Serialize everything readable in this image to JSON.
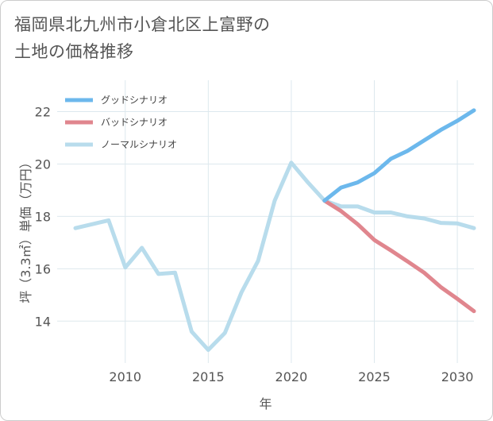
{
  "title_lines": [
    "福岡県北九州市小倉北区上富野の",
    "土地の価格推移"
  ],
  "chart_data": {
    "type": "line",
    "title": "福岡県北九州市小倉北区上富野の土地の価格推移",
    "xlabel": "年",
    "ylabel": "坪（3.3㎡）単価（万円）",
    "xlim": [
      2005.9,
      2031
    ],
    "ylim": [
      12.4,
      23.2
    ],
    "x_ticks": [
      2010,
      2015,
      2020,
      2025,
      2030
    ],
    "y_ticks": [
      14,
      16,
      18,
      20,
      22
    ],
    "x_tick_labels": [
      "2010",
      "2015",
      "2020",
      "2025",
      "2030"
    ],
    "y_tick_labels": [
      "14",
      "16",
      "18",
      "20",
      "22"
    ],
    "grid": true,
    "legend_position": "top-left",
    "series": [
      {
        "name": "グッドシナリオ",
        "color": "#6cb8ec",
        "x": [
          2022,
          2023,
          2024,
          2025,
          2026,
          2027,
          2028,
          2029,
          2030,
          2031
        ],
        "values": [
          18.6,
          19.1,
          19.3,
          19.65,
          20.2,
          20.5,
          20.9,
          21.3,
          21.65,
          22.05
        ]
      },
      {
        "name": "バッドシナリオ",
        "color": "#e0868e",
        "x": [
          2022,
          2023,
          2024,
          2025,
          2026,
          2027,
          2028,
          2029,
          2030,
          2031
        ],
        "values": [
          18.6,
          18.2,
          17.7,
          17.1,
          16.7,
          16.28,
          15.85,
          15.3,
          14.85,
          14.38
        ]
      },
      {
        "name": "ノーマルシナリオ",
        "color": "#b8dcec",
        "x": [
          2007,
          2008,
          2009,
          2010,
          2011,
          2012,
          2013,
          2014,
          2015,
          2016,
          2017,
          2018,
          2019,
          2020,
          2021,
          2022,
          2023,
          2024,
          2025,
          2026,
          2027,
          2028,
          2029,
          2030,
          2031
        ],
        "values": [
          17.55,
          17.7,
          17.85,
          16.05,
          16.8,
          15.8,
          15.85,
          13.6,
          12.9,
          13.55,
          15.1,
          16.3,
          18.6,
          20.05,
          19.3,
          18.6,
          18.38,
          18.38,
          18.15,
          18.15,
          18.0,
          17.92,
          17.75,
          17.73,
          17.55
        ]
      }
    ]
  }
}
